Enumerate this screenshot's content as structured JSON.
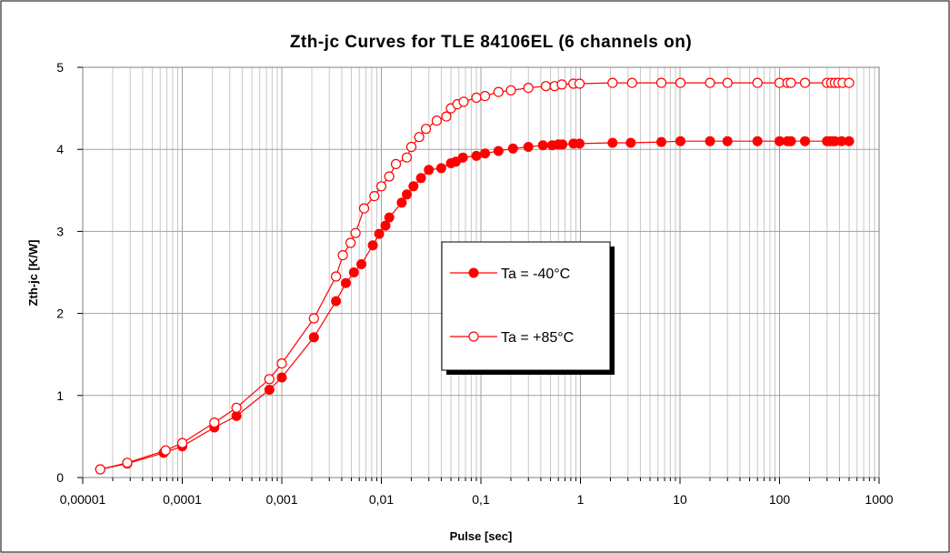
{
  "chart_data": {
    "type": "scatter",
    "title": "Zth-jc Curves for TLE 84106EL (6 channels on)",
    "xlabel": "Pulse [sec]",
    "ylabel": "Zth-jc [K/W]",
    "xscale": "log",
    "xlim": [
      1e-05,
      1000
    ],
    "ylim": [
      0,
      5
    ],
    "x_tick_labels": [
      "0,00001",
      "0,0001",
      "0,001",
      "0,01",
      "0,1",
      "1",
      "10",
      "100",
      "1000"
    ],
    "y_tick_labels": [
      "0",
      "1",
      "2",
      "3",
      "4",
      "5"
    ],
    "grid": true,
    "legend_position": "center-right",
    "series_color": "#ff0000",
    "series": [
      {
        "name": "Ta = -40°C",
        "marker": "filled-circle",
        "x": [
          1.5e-05,
          2.8e-05,
          6.5e-05,
          0.0001,
          0.00021,
          0.00035,
          0.00075,
          0.001,
          0.0021,
          0.0035,
          0.0044,
          0.0053,
          0.0063,
          0.0082,
          0.0095,
          0.011,
          0.012,
          0.016,
          0.018,
          0.021,
          0.025,
          0.03,
          0.04,
          0.05,
          0.056,
          0.066,
          0.09,
          0.11,
          0.15,
          0.21,
          0.3,
          0.42,
          0.52,
          0.6,
          0.66,
          0.85,
          0.98,
          2.1,
          3.2,
          6.5,
          10.1,
          20,
          30,
          60,
          100,
          120,
          130,
          180,
          300,
          320,
          340,
          360,
          420,
          500
        ],
        "y": [
          0.1,
          0.17,
          0.3,
          0.38,
          0.61,
          0.75,
          1.07,
          1.22,
          1.71,
          2.15,
          2.37,
          2.5,
          2.6,
          2.83,
          2.97,
          3.07,
          3.17,
          3.35,
          3.45,
          3.55,
          3.65,
          3.75,
          3.77,
          3.83,
          3.85,
          3.9,
          3.92,
          3.95,
          3.98,
          4.01,
          4.03,
          4.05,
          4.05,
          4.06,
          4.06,
          4.07,
          4.07,
          4.08,
          4.08,
          4.09,
          4.1,
          4.1,
          4.1,
          4.1,
          4.1,
          4.1,
          4.1,
          4.1,
          4.1,
          4.1,
          4.1,
          4.1,
          4.1,
          4.1
        ]
      },
      {
        "name": "Ta = +85°C",
        "marker": "open-circle",
        "x": [
          1.5e-05,
          2.8e-05,
          6.8e-05,
          0.0001,
          0.00021,
          0.00035,
          0.00075,
          0.001,
          0.0021,
          0.0035,
          0.0041,
          0.0049,
          0.0055,
          0.0067,
          0.0085,
          0.01,
          0.012,
          0.014,
          0.018,
          0.02,
          0.024,
          0.028,
          0.036,
          0.045,
          0.05,
          0.058,
          0.067,
          0.09,
          0.11,
          0.15,
          0.2,
          0.3,
          0.45,
          0.55,
          0.65,
          0.85,
          0.98,
          2.1,
          3.3,
          6.5,
          10.1,
          20,
          30,
          60,
          100,
          120,
          130,
          180,
          300,
          330,
          360,
          390,
          430,
          500
        ],
        "y": [
          0.1,
          0.18,
          0.33,
          0.42,
          0.67,
          0.85,
          1.2,
          1.39,
          1.94,
          2.45,
          2.71,
          2.86,
          2.98,
          3.28,
          3.43,
          3.55,
          3.67,
          3.82,
          3.9,
          4.03,
          4.15,
          4.25,
          4.35,
          4.4,
          4.5,
          4.55,
          4.58,
          4.63,
          4.65,
          4.7,
          4.72,
          4.75,
          4.77,
          4.77,
          4.79,
          4.8,
          4.8,
          4.81,
          4.81,
          4.81,
          4.81,
          4.81,
          4.81,
          4.81,
          4.81,
          4.81,
          4.81,
          4.81,
          4.81,
          4.81,
          4.81,
          4.81,
          4.81,
          4.81
        ]
      }
    ]
  }
}
